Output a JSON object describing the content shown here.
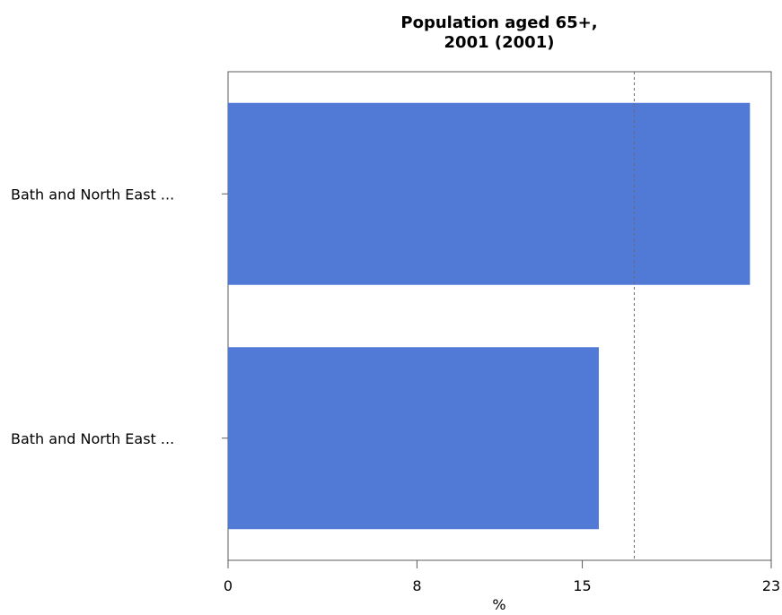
{
  "chart_data": {
    "type": "bar",
    "orientation": "horizontal",
    "title": [
      "Population aged 65+,",
      "2001 (2001)"
    ],
    "categories": [
      "Bath and North East ...",
      "Bath and North East ..."
    ],
    "values": [
      22.1,
      15.7
    ],
    "xlabel": "%",
    "ylabel": "",
    "xlim": [
      0,
      23
    ],
    "xticks": [
      0,
      8,
      15,
      23
    ],
    "reference_line": 17.2,
    "bar_color": "#517ad6",
    "grid": false,
    "legend": "none"
  }
}
